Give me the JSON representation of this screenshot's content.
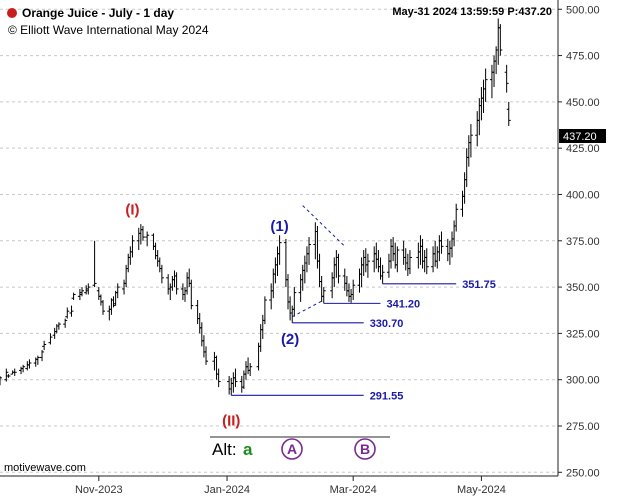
{
  "header": {
    "title": "Orange Juice - July - 1 day",
    "copyright": "© Elliott Wave International May 2024",
    "datetime": "May-31 2024  13:59:59  P:437.20",
    "dot_color": "#c81e1e"
  },
  "brand": "motivewave.com",
  "chart_data": {
    "type": "bar",
    "title": "Orange Juice - July - 1 day",
    "ylim": [
      248,
      505
    ],
    "y_ticks": [
      "250.00",
      "275.00",
      "300.00",
      "325.00",
      "350.00",
      "375.00",
      "400.00",
      "425.00",
      "450.00",
      "475.00",
      "500.00"
    ],
    "y_tick_values": [
      250,
      275,
      300,
      325,
      350,
      375,
      400,
      425,
      450,
      475,
      500
    ],
    "x_ticks": [
      "Nov-2023",
      "Jan-2024",
      "Mar-2024",
      "May-2024"
    ],
    "x_tick_dates": [
      "2023-11-01",
      "2024-01-01",
      "2024-03-01",
      "2024-05-01"
    ],
    "x_range": [
      "2023-09-15",
      "2024-06-05"
    ],
    "last_price": "437.20",
    "last_price_value": 437.2,
    "grid": "horizontal dashed",
    "bar_color": "#000000",
    "bars": [
      [
        "2023-09-15",
        297,
        302,
        299,
        301
      ],
      [
        "2023-09-18",
        299,
        306,
        300,
        304
      ],
      [
        "2023-09-19",
        301,
        303,
        302,
        302
      ],
      [
        "2023-09-21",
        303,
        305,
        303,
        304
      ],
      [
        "2023-09-22",
        302,
        306,
        304,
        304
      ],
      [
        "2023-09-25",
        303,
        307,
        305,
        306
      ],
      [
        "2023-09-26",
        304,
        308,
        306,
        307
      ],
      [
        "2023-09-28",
        305,
        310,
        306,
        308
      ],
      [
        "2023-09-29",
        306,
        311,
        308,
        309
      ],
      [
        "2023-10-02",
        307,
        312,
        309,
        311
      ],
      [
        "2023-10-03",
        308,
        313,
        311,
        312
      ],
      [
        "2023-10-05",
        310,
        316,
        312,
        315
      ],
      [
        "2023-10-06",
        316,
        321,
        318,
        319
      ],
      [
        "2023-10-09",
        319,
        325,
        320,
        323
      ],
      [
        "2023-10-11",
        322,
        328,
        324,
        326
      ],
      [
        "2023-10-12",
        325,
        330,
        326,
        329
      ],
      [
        "2023-10-13",
        327,
        331,
        329,
        330
      ],
      [
        "2023-10-16",
        328,
        333,
        330,
        332
      ],
      [
        "2023-10-17",
        333,
        339,
        334,
        337
      ],
      [
        "2023-10-19",
        334,
        340,
        336,
        337
      ],
      [
        "2023-10-20",
        343,
        347,
        344,
        346
      ],
      [
        "2023-10-23",
        343,
        349,
        345,
        347
      ],
      [
        "2023-10-24",
        345,
        350,
        346,
        348
      ],
      [
        "2023-10-26",
        346,
        351,
        347,
        349
      ],
      [
        "2023-10-27",
        346,
        352,
        348,
        350
      ],
      [
        "2023-10-30",
        350,
        375,
        351,
        352
      ],
      [
        "2023-11-01",
        343,
        350,
        348,
        345
      ],
      [
        "2023-11-02",
        340,
        346,
        345,
        342
      ],
      [
        "2023-11-03",
        335,
        343,
        342,
        337
      ],
      [
        "2023-11-06",
        332,
        340,
        337,
        338
      ],
      [
        "2023-11-07",
        335,
        344,
        338,
        343
      ],
      [
        "2023-11-08",
        339,
        345,
        343,
        340
      ],
      [
        "2023-11-09",
        340,
        348,
        341,
        347
      ],
      [
        "2023-11-10",
        344,
        352,
        347,
        350
      ],
      [
        "2023-11-13",
        346,
        354,
        349,
        352
      ],
      [
        "2023-11-14",
        350,
        362,
        352,
        360
      ],
      [
        "2023-11-15",
        358,
        368,
        360,
        366
      ],
      [
        "2023-11-16",
        362,
        372,
        366,
        369
      ],
      [
        "2023-11-17",
        366,
        378,
        369,
        375
      ],
      [
        "2023-11-20",
        370,
        382,
        375,
        379
      ],
      [
        "2023-11-21",
        373,
        384,
        379,
        381
      ],
      [
        "2023-11-22",
        375,
        383,
        381,
        377
      ],
      [
        "2023-11-24",
        372,
        380,
        377,
        378
      ],
      [
        "2023-11-27",
        370,
        379,
        378,
        372
      ],
      [
        "2023-11-28",
        365,
        374,
        372,
        367
      ],
      [
        "2023-11-29",
        361,
        370,
        367,
        364
      ],
      [
        "2023-11-30",
        358,
        366,
        364,
        360
      ],
      [
        "2023-12-01",
        352,
        362,
        360,
        355
      ],
      [
        "2023-12-04",
        346,
        357,
        355,
        349
      ],
      [
        "2023-12-05",
        343,
        352,
        349,
        350
      ],
      [
        "2023-12-06",
        348,
        356,
        350,
        354
      ],
      [
        "2023-12-07",
        350,
        359,
        354,
        356
      ],
      [
        "2023-12-08",
        346,
        358,
        356,
        349
      ],
      [
        "2023-12-11",
        343,
        352,
        349,
        346
      ],
      [
        "2023-12-12",
        342,
        350,
        346,
        348
      ],
      [
        "2023-12-13",
        346,
        358,
        348,
        355
      ],
      [
        "2023-12-14",
        350,
        360,
        355,
        352
      ],
      [
        "2023-12-15",
        338,
        354,
        352,
        340
      ],
      [
        "2023-12-18",
        330,
        343,
        340,
        333
      ],
      [
        "2023-12-19",
        325,
        336,
        333,
        328
      ],
      [
        "2023-12-20",
        318,
        331,
        328,
        321
      ],
      [
        "2023-12-21",
        312,
        324,
        321,
        315
      ],
      [
        "2023-12-22",
        308,
        318,
        315,
        310
      ],
      [
        "2023-12-26",
        305,
        315,
        310,
        312
      ],
      [
        "2023-12-27",
        300,
        313,
        312,
        303
      ],
      [
        "2023-12-28",
        296,
        306,
        303,
        299
      ],
      [
        "2024-01-02",
        292,
        302,
        299,
        295
      ],
      [
        "2024-01-03",
        291.55,
        301,
        295,
        298
      ],
      [
        "2024-01-04",
        293,
        304,
        298,
        301
      ],
      [
        "2024-01-05",
        296,
        306,
        301,
        299
      ],
      [
        "2024-01-08",
        293,
        302,
        299,
        296
      ],
      [
        "2024-01-09",
        295,
        305,
        296,
        303
      ],
      [
        "2024-01-10",
        300,
        310,
        303,
        307
      ],
      [
        "2024-01-11",
        303,
        312,
        307,
        305
      ],
      [
        "2024-01-12",
        302,
        309,
        305,
        307
      ],
      [
        "2024-01-16",
        305,
        320,
        307,
        318
      ],
      [
        "2024-01-17",
        315,
        330,
        318,
        327
      ],
      [
        "2024-01-18",
        322,
        335,
        327,
        332
      ],
      [
        "2024-01-19",
        330,
        345,
        332,
        343
      ],
      [
        "2024-01-22",
        338,
        352,
        343,
        348
      ],
      [
        "2024-01-23",
        344,
        360,
        348,
        357
      ],
      [
        "2024-01-24",
        352,
        366,
        357,
        362
      ],
      [
        "2024-01-25",
        356,
        372,
        362,
        368
      ],
      [
        "2024-01-26",
        362,
        378,
        368,
        374
      ],
      [
        "2024-01-29",
        350,
        376,
        374,
        354
      ],
      [
        "2024-01-30",
        338,
        357,
        354,
        342
      ],
      [
        "2024-01-31",
        332,
        345,
        342,
        336
      ],
      [
        "2024-02-01",
        330.7,
        340,
        336,
        338
      ],
      [
        "2024-02-02",
        334,
        350,
        338,
        347
      ],
      [
        "2024-02-05",
        342,
        357,
        347,
        354
      ],
      [
        "2024-02-06",
        348,
        362,
        354,
        359
      ],
      [
        "2024-02-07",
        352,
        367,
        359,
        363
      ],
      [
        "2024-02-08",
        358,
        372,
        363,
        368
      ],
      [
        "2024-02-09",
        362,
        377,
        368,
        373
      ],
      [
        "2024-02-12",
        365,
        385,
        373,
        380
      ],
      [
        "2024-02-13",
        360,
        383,
        380,
        364
      ],
      [
        "2024-02-14",
        350,
        368,
        364,
        353
      ],
      [
        "2024-02-15",
        342,
        356,
        353,
        345
      ],
      [
        "2024-02-16",
        341.2,
        350,
        345,
        348
      ],
      [
        "2024-02-20",
        344,
        358,
        348,
        355
      ],
      [
        "2024-02-21",
        350,
        366,
        355,
        362
      ],
      [
        "2024-02-22",
        355,
        370,
        362,
        366
      ],
      [
        "2024-02-23",
        352,
        368,
        366,
        356
      ],
      [
        "2024-02-26",
        348,
        360,
        356,
        352
      ],
      [
        "2024-02-27",
        345,
        356,
        352,
        348
      ],
      [
        "2024-02-28",
        342,
        352,
        348,
        345
      ],
      [
        "2024-02-29",
        341.5,
        349,
        345,
        346
      ],
      [
        "2024-03-01",
        343,
        354,
        346,
        351
      ],
      [
        "2024-03-04",
        347,
        360,
        351,
        357
      ],
      [
        "2024-03-05",
        350,
        366,
        357,
        362
      ],
      [
        "2024-03-06",
        356,
        370,
        362,
        366
      ],
      [
        "2024-03-07",
        358,
        371,
        366,
        362
      ],
      [
        "2024-03-08",
        355,
        368,
        362,
        364
      ],
      [
        "2024-03-11",
        358,
        372,
        364,
        368
      ],
      [
        "2024-03-12",
        360,
        374,
        368,
        365
      ],
      [
        "2024-03-13",
        358,
        370,
        365,
        361
      ],
      [
        "2024-03-14",
        354,
        366,
        361,
        356
      ],
      [
        "2024-03-15",
        351.75,
        362,
        356,
        358
      ],
      [
        "2024-03-18",
        355,
        368,
        358,
        364
      ],
      [
        "2024-03-19",
        360,
        376,
        364,
        372
      ],
      [
        "2024-03-20",
        364,
        377,
        372,
        368
      ],
      [
        "2024-03-21",
        360,
        374,
        368,
        362
      ],
      [
        "2024-03-22",
        358,
        372,
        362,
        370
      ],
      [
        "2024-03-25",
        362,
        375,
        370,
        366
      ],
      [
        "2024-03-26",
        359,
        371,
        366,
        363
      ],
      [
        "2024-03-27",
        356,
        368,
        363,
        360
      ],
      [
        "2024-03-28",
        357,
        370,
        360,
        366
      ],
      [
        "2024-04-01",
        360,
        374,
        366,
        369
      ],
      [
        "2024-04-02",
        362,
        378,
        369,
        372
      ],
      [
        "2024-04-03",
        360,
        376,
        372,
        364
      ],
      [
        "2024-04-04",
        358,
        370,
        364,
        366
      ],
      [
        "2024-04-05",
        357,
        371,
        366,
        361
      ],
      [
        "2024-04-08",
        358,
        372,
        361,
        368
      ],
      [
        "2024-04-09",
        361,
        375,
        368,
        364
      ],
      [
        "2024-04-10",
        360,
        372,
        364,
        369
      ],
      [
        "2024-04-11",
        364,
        378,
        369,
        375
      ],
      [
        "2024-04-12",
        368,
        380,
        375,
        372
      ],
      [
        "2024-04-15",
        364,
        376,
        372,
        368
      ],
      [
        "2024-04-16",
        362,
        375,
        368,
        371
      ],
      [
        "2024-04-17",
        366,
        380,
        371,
        376
      ],
      [
        "2024-04-18",
        372,
        386,
        376,
        383
      ],
      [
        "2024-04-19",
        380,
        395,
        383,
        392
      ],
      [
        "2024-04-22",
        388,
        402,
        392,
        399
      ],
      [
        "2024-04-23",
        395,
        412,
        399,
        408
      ],
      [
        "2024-04-24",
        404,
        425,
        408,
        420
      ],
      [
        "2024-04-25",
        415,
        432,
        420,
        428
      ],
      [
        "2024-04-26",
        420,
        438,
        428,
        432
      ],
      [
        "2024-04-29",
        426,
        445,
        432,
        440
      ],
      [
        "2024-04-30",
        432,
        452,
        440,
        448
      ],
      [
        "2024-05-01",
        440,
        458,
        448,
        452
      ],
      [
        "2024-05-02",
        444,
        462,
        452,
        457
      ],
      [
        "2024-05-03",
        450,
        468,
        457,
        462
      ],
      [
        "2024-05-06",
        452,
        470,
        462,
        466
      ],
      [
        "2024-05-07",
        458,
        475,
        466,
        472
      ],
      [
        "2024-05-08",
        465,
        480,
        472,
        478
      ],
      [
        "2024-05-09",
        470,
        495,
        478,
        490
      ],
      [
        "2024-05-10",
        475,
        492,
        490,
        478
      ],
      [
        "2024-05-13",
        455,
        470,
        466,
        460
      ],
      [
        "2024-05-14",
        437,
        450,
        446,
        440
      ]
    ],
    "levels": [
      {
        "label": "291.55",
        "value": 291.55,
        "from": "2024-01-03",
        "to": "2024-03-06"
      },
      {
        "label": "330.70",
        "value": 330.7,
        "from": "2024-02-01",
        "to": "2024-03-06"
      },
      {
        "label": "341.20",
        "value": 341.2,
        "from": "2024-02-16",
        "to": "2024-03-14"
      },
      {
        "label": "351.75",
        "value": 351.75,
        "from": "2024-03-15",
        "to": "2024-04-19"
      }
    ],
    "waves": [
      {
        "label": "(I)",
        "date": "2023-11-17",
        "value": 392,
        "color": "#c81e1e"
      },
      {
        "label": "(II)",
        "date": "2024-01-03",
        "value": 278,
        "color": "#c81e1e"
      },
      {
        "label": "(1)",
        "date": "2024-01-26",
        "value": 383,
        "color": "#1a1aa8"
      },
      {
        "label": "(2)",
        "date": "2024-01-31",
        "value": 322,
        "color": "#1a1aa8"
      }
    ],
    "channel": [
      {
        "from": [
          "2024-02-06",
          394
        ],
        "to": [
          "2024-02-26",
          372
        ]
      },
      {
        "from": [
          "2024-02-01",
          334
        ],
        "to": [
          "2024-02-16",
          343
        ]
      }
    ],
    "alt": {
      "prefix": "Alt:",
      "wave_a": "a",
      "wave_A": "A",
      "wave_B": "B",
      "a_color": "#1c8c1c",
      "circle_color": "#7a2a90"
    }
  }
}
